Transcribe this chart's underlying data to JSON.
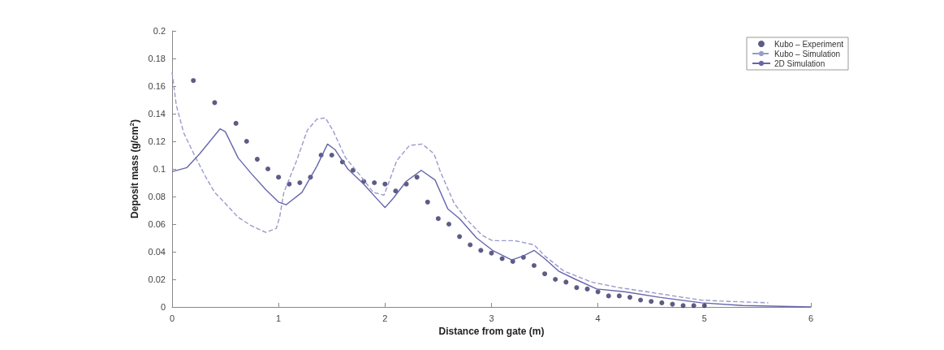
{
  "chart_data": {
    "type": "line",
    "xlabel": "Distance from gate (m)",
    "ylabel": "Deposit mass (g/cm$^{2}$)",
    "xlim": [
      0,
      6
    ],
    "xticks": [
      0,
      1,
      2,
      3,
      4,
      5,
      6
    ],
    "ylim": [
      0,
      0.2
    ],
    "yticks": [
      0,
      0.02,
      0.04,
      0.06,
      0.08,
      0.1,
      0.12,
      0.14,
      0.16,
      0.18,
      0.2
    ],
    "grid": false,
    "legend": "top right",
    "series": [
      {
        "name": "Kubo – Experiment",
        "type": "scatter",
        "marker": "circle",
        "color": "#333366",
        "x": [
          0.2,
          0.4,
          0.6,
          0.7,
          0.8,
          0.9,
          1.0,
          1.1,
          1.2,
          1.3,
          1.4,
          1.5,
          1.6,
          1.7,
          1.8,
          1.9,
          2.0,
          2.1,
          2.2,
          2.3,
          2.4,
          2.5,
          2.6,
          2.7,
          2.8,
          2.9,
          3.0,
          3.1,
          3.2,
          3.3,
          3.4,
          3.5,
          3.6,
          3.7,
          3.8,
          3.9,
          4.0,
          4.1,
          4.2,
          4.3,
          4.4,
          4.5,
          4.6,
          4.7,
          4.8,
          4.9,
          5.0
        ],
        "values": [
          0.164,
          0.148,
          0.133,
          0.12,
          0.107,
          0.1,
          0.094,
          0.089,
          0.09,
          0.094,
          0.11,
          0.11,
          0.105,
          0.099,
          0.091,
          0.09,
          0.089,
          0.084,
          0.089,
          0.094,
          0.076,
          0.064,
          0.06,
          0.051,
          0.045,
          0.041,
          0.039,
          0.035,
          0.033,
          0.036,
          0.03,
          0.024,
          0.02,
          0.018,
          0.014,
          0.013,
          0.011,
          0.008,
          0.008,
          0.007,
          0.005,
          0.004,
          0.003,
          0.002,
          0.001,
          0.001,
          0.001
        ]
      },
      {
        "name": "Kubo – Simulation",
        "type": "line",
        "line_style": "dashed",
        "marker": "none",
        "color": "#9a9acc",
        "x": [
          0,
          0.04,
          0.11,
          0.21,
          0.31,
          0.4,
          0.5,
          0.62,
          0.74,
          0.88,
          0.98,
          1.01,
          1.05,
          1.17,
          1.27,
          1.36,
          1.44,
          1.51,
          1.63,
          1.77,
          1.89,
          1.99,
          2.04,
          2.11,
          2.23,
          2.35,
          2.46,
          2.52,
          2.65,
          2.76,
          2.91,
          3.01,
          3.22,
          3.4,
          3.5,
          3.68,
          3.94,
          4.2,
          4.46,
          4.71,
          4.97,
          5.23,
          5.6
        ],
        "values": [
          0.17,
          0.146,
          0.126,
          0.11,
          0.095,
          0.083,
          0.075,
          0.065,
          0.059,
          0.054,
          0.057,
          0.065,
          0.083,
          0.106,
          0.128,
          0.136,
          0.137,
          0.128,
          0.108,
          0.095,
          0.083,
          0.081,
          0.091,
          0.106,
          0.117,
          0.118,
          0.111,
          0.098,
          0.075,
          0.064,
          0.052,
          0.048,
          0.048,
          0.045,
          0.037,
          0.026,
          0.018,
          0.014,
          0.011,
          0.008,
          0.005,
          0.004,
          0.003
        ]
      },
      {
        "name": "2D Simulation",
        "line_style": "solid",
        "marker": "none",
        "color": "#6666aa",
        "x": [
          0,
          0.14,
          0.26,
          0.45,
          0.5,
          0.62,
          0.74,
          0.88,
          1.0,
          1.07,
          1.22,
          1.36,
          1.46,
          1.53,
          1.65,
          1.8,
          1.94,
          2.0,
          2.08,
          2.2,
          2.34,
          2.47,
          2.59,
          2.7,
          2.86,
          3.01,
          3.19,
          3.3,
          3.4,
          3.5,
          3.63,
          3.79,
          3.99,
          4.25,
          4.58,
          4.97,
          5.36,
          6.0
        ],
        "values": [
          0.098,
          0.101,
          0.111,
          0.129,
          0.127,
          0.108,
          0.097,
          0.085,
          0.076,
          0.074,
          0.083,
          0.102,
          0.118,
          0.114,
          0.1,
          0.089,
          0.077,
          0.072,
          0.079,
          0.091,
          0.099,
          0.092,
          0.071,
          0.064,
          0.05,
          0.041,
          0.034,
          0.037,
          0.041,
          0.035,
          0.026,
          0.02,
          0.013,
          0.011,
          0.007,
          0.003,
          0.001,
          0
        ]
      }
    ]
  }
}
